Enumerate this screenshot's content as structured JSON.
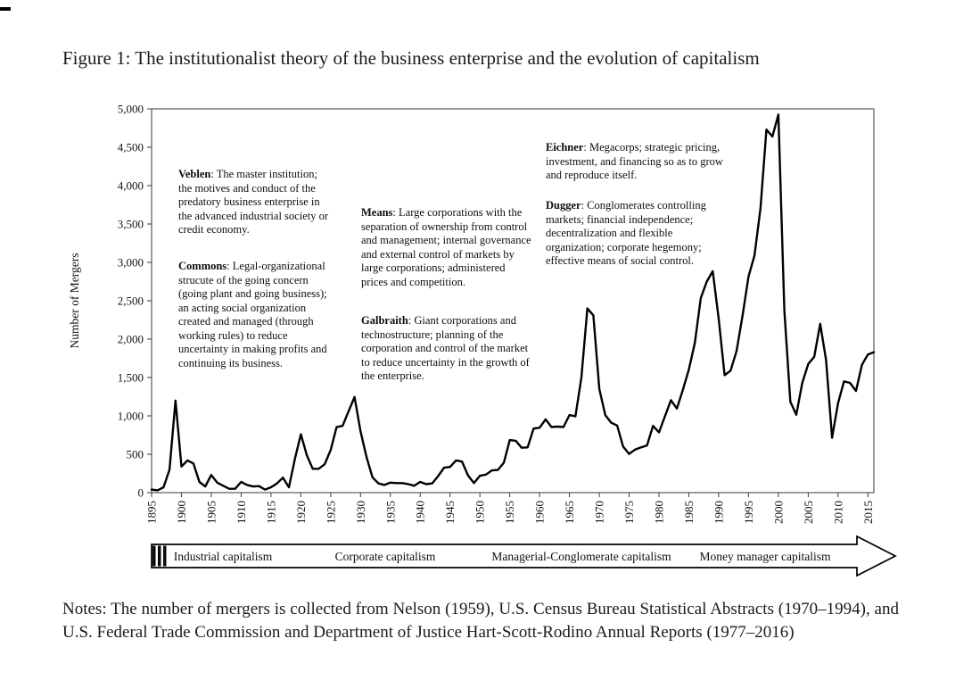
{
  "figure": {
    "caption": "Figure 1: The institutionalist theory of the business enterprise and the evolution of capitalism",
    "notes": "Notes: The number of mergers is collected from Nelson (1959), U.S. Census Bureau Statistical Abstracts (1970–1994), and U.S. Federal Trade Commission and Department of Justice Hart-Scott-Rodino Annual Reports (1977–2016)"
  },
  "chart_data": {
    "type": "line",
    "title": "",
    "xlabel": "",
    "ylabel": "Number of Mergers",
    "xlim": [
      1895,
      2016
    ],
    "ylim": [
      0,
      5000
    ],
    "grid": false,
    "legend": "none",
    "x_ticks": [
      1895,
      1900,
      1905,
      1910,
      1915,
      1920,
      1925,
      1930,
      1935,
      1940,
      1945,
      1950,
      1955,
      1960,
      1965,
      1970,
      1975,
      1980,
      1985,
      1990,
      1995,
      2000,
      2005,
      2010,
      2015
    ],
    "y_tick_values": [
      0,
      500,
      1000,
      1500,
      2000,
      2500,
      3000,
      3500,
      4000,
      4500,
      5000
    ],
    "y_tick_labels": [
      "0",
      "500",
      "1,000",
      "1,500",
      "2,000",
      "2,500",
      "3,000",
      "3,500",
      "4,000",
      "4,500",
      "5,000"
    ],
    "annotation_separator": ": ",
    "series": [
      {
        "name": "Number of mergers per year",
        "x": [
          1895,
          1896,
          1897,
          1898,
          1899,
          1900,
          1901,
          1902,
          1903,
          1904,
          1905,
          1906,
          1907,
          1908,
          1909,
          1910,
          1911,
          1912,
          1913,
          1914,
          1915,
          1916,
          1917,
          1918,
          1919,
          1920,
          1921,
          1922,
          1923,
          1924,
          1925,
          1926,
          1927,
          1928,
          1929,
          1930,
          1931,
          1932,
          1933,
          1934,
          1935,
          1936,
          1937,
          1938,
          1939,
          1940,
          1941,
          1942,
          1943,
          1944,
          1945,
          1946,
          1947,
          1948,
          1949,
          1950,
          1951,
          1952,
          1953,
          1954,
          1955,
          1956,
          1957,
          1958,
          1959,
          1960,
          1961,
          1962,
          1963,
          1964,
          1965,
          1966,
          1967,
          1968,
          1969,
          1970,
          1971,
          1972,
          1973,
          1974,
          1975,
          1976,
          1977,
          1978,
          1979,
          1980,
          1981,
          1982,
          1983,
          1984,
          1985,
          1986,
          1987,
          1988,
          1989,
          1990,
          1991,
          1992,
          1993,
          1994,
          1995,
          1996,
          1997,
          1998,
          1999,
          2000,
          2001,
          2002,
          2003,
          2004,
          2005,
          2006,
          2007,
          2008,
          2009,
          2010,
          2011,
          2012,
          2013,
          2014,
          2015,
          2016
        ],
        "values": [
          40,
          30,
          70,
          300,
          1200,
          340,
          420,
          380,
          140,
          80,
          230,
          130,
          90,
          50,
          50,
          140,
          100,
          80,
          85,
          40,
          70,
          120,
          195,
          70,
          440,
          760,
          490,
          310,
          310,
          370,
          555,
          855,
          870,
          1060,
          1245,
          800,
          465,
          200,
          120,
          100,
          130,
          125,
          125,
          110,
          90,
          140,
          110,
          120,
          215,
          325,
          335,
          420,
          405,
          225,
          125,
          220,
          235,
          290,
          295,
          390,
          685,
          675,
          585,
          590,
          835,
          845,
          955,
          855,
          860,
          855,
          1010,
          995,
          1500,
          2400,
          2310,
          1350,
          1010,
          910,
          875,
          600,
          505,
          560,
          590,
          615,
          870,
          785,
          995,
          1205,
          1095,
          1340,
          1605,
          1950,
          2535,
          2750,
          2885,
          2260,
          1530,
          1590,
          1845,
          2305,
          2815,
          3090,
          3700,
          4730,
          4640,
          4925,
          2375,
          1185,
          1015,
          1430,
          1675,
          1770,
          2200,
          1725,
          715,
          1165,
          1450,
          1430,
          1325,
          1665,
          1800,
          1830
        ]
      }
    ],
    "annotations": [
      {
        "name": "Veblen",
        "text": "The master institution; the motives and conduct of the predatory business enterprise in the advanced industrial society or credit economy."
      },
      {
        "name": "Commons",
        "text": "Legal-organizational strucute of the going concern (going plant and going business); an acting social organization created and managed (through working rules) to reduce uncertainty in making profits and continuing its business."
      },
      {
        "name": "Means",
        "text": "Large corporations with the separation of ownership from control and management; internal governance and external control of markets by large corporations; administered prices and competition."
      },
      {
        "name": "Galbraith",
        "text": "Giant corporations and technostructure; planning of the corporation and control of the market to reduce uncertainty in the growth of the enterprise."
      },
      {
        "name": "Eichner",
        "text": "Megacorps; strategic pricing, investment, and financing so as to grow and reproduce itself."
      },
      {
        "name": "Dugger",
        "text": "Conglomerates controlling markets; financial independence; decentralization and flexible organization; corporate hegemony; effective means of social control."
      }
    ]
  },
  "timeline": {
    "eras": [
      "Industrial capitalism",
      "Corporate capitalism",
      "Managerial-Conglomerate capitalism",
      "Money manager capitalism"
    ]
  }
}
